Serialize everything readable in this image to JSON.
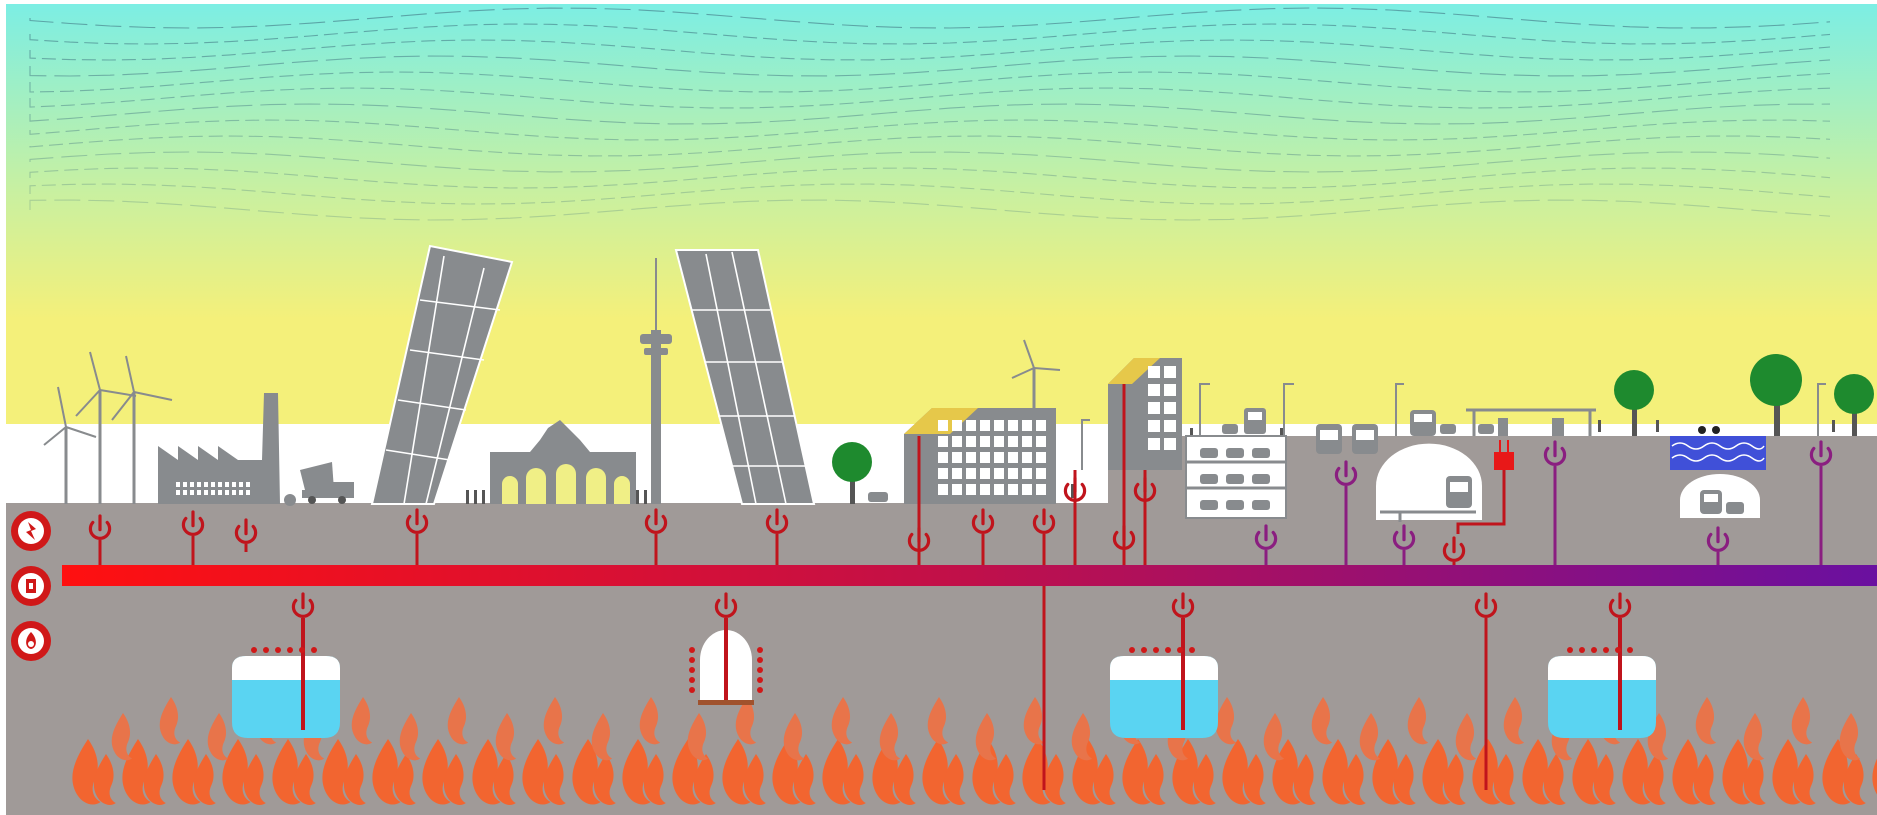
{
  "colors": {
    "sky_top": "#7ceee4",
    "sky_mid": "#c9f0a0",
    "sky_bottom": "#f4f07a",
    "ground": "#a09a98",
    "building": "#888b8e",
    "building_dark": "#6f7275",
    "network_start": "#ff1010",
    "network_mid": "#c0104a",
    "network_end": "#6a10a0",
    "connector_red": "#c0141c",
    "connector_purple": "#8a1e80",
    "flame_outer": "#f26530",
    "flame_inner": "#e8744a",
    "water": "#5ad4f2",
    "tree": "#1e8a2e",
    "solar": "#e6c84a",
    "shelter": "#ffffff"
  },
  "legend_icons": [
    "electricity-icon",
    "heat-exchanger-icon",
    "heat-source-icon"
  ],
  "surface_elements": [
    "wind-turbines",
    "factory",
    "dump-truck",
    "leaning-tower-left",
    "puerta-de-alcala-gate",
    "tv-tower",
    "leaning-tower-right",
    "tree",
    "office-building-with-solar-panels",
    "wind-turbine",
    "tall-building-with-solar-panels",
    "parking-garage",
    "bus-station",
    "underground-train-station",
    "electric-vehicle-charger",
    "ev-charging-canopy",
    "trees",
    "water-pool",
    "underground-car-tunnel"
  ],
  "underground_elements": [
    "thermal-storage-tank",
    "borehole-dome",
    "thermal-storage-tank",
    "thermal-storage-tank"
  ],
  "connection_types": [
    "district-heating-network",
    "power-connector",
    "geothermal-pipe"
  ]
}
